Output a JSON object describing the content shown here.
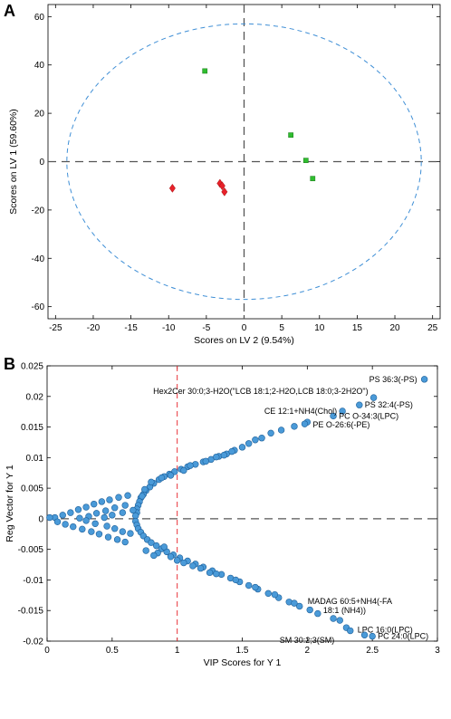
{
  "chart_data": [
    {
      "panel": "A",
      "type": "scatter",
      "xlabel": "Scores on LV 2 (9.54%)",
      "ylabel": "Scores on LV 1 (59.60%)",
      "xlim": [
        -26,
        26
      ],
      "ylim": [
        -65,
        65
      ],
      "xticks": [
        -25,
        -20,
        -15,
        -10,
        -5,
        0,
        5,
        10,
        15,
        20,
        25
      ],
      "yticks": [
        -60,
        -40,
        -20,
        0,
        20,
        40,
        60
      ],
      "ellipse": {
        "cx": 0,
        "cy": 0,
        "rx": 23.5,
        "ry": 57
      },
      "series": [
        {
          "marker": "diamond",
          "color": "#e8212a",
          "points": [
            [
              -9.5,
              -11
            ],
            [
              -3.2,
              -9
            ],
            [
              -2.9,
              -10
            ],
            [
              -2.6,
              -12.5
            ]
          ]
        },
        {
          "marker": "square",
          "color": "#2fbd2f",
          "points": [
            [
              -5.2,
              37.5
            ],
            [
              6.2,
              11
            ],
            [
              8.2,
              0.5
            ],
            [
              9.1,
              -7
            ]
          ]
        }
      ]
    },
    {
      "panel": "B",
      "type": "scatter",
      "xlabel": "VIP Scores for Y 1",
      "ylabel": "Reg Vector for Y 1",
      "xlim": [
        0,
        3
      ],
      "ylim": [
        -0.02,
        0.025
      ],
      "xticks": [
        0,
        0.5,
        1,
        1.5,
        2,
        2.5,
        3
      ],
      "yticks": [
        -0.02,
        -0.015,
        -0.01,
        -0.005,
        0,
        0.005,
        0.01,
        0.015,
        0.02,
        0.025
      ],
      "threshold_vip": 1,
      "point_color": "#4a9ad8",
      "points": [
        [
          2.9,
          0.0228
        ],
        [
          2.51,
          0.0198
        ],
        [
          2.4,
          0.0186
        ],
        [
          2.27,
          0.0176
        ],
        [
          2.2,
          0.0168
        ],
        [
          2.0,
          0.0158
        ],
        [
          1.98,
          0.0155
        ],
        [
          1.9,
          0.0151
        ],
        [
          1.8,
          0.0145
        ],
        [
          1.72,
          0.014
        ],
        [
          1.65,
          0.0132
        ],
        [
          1.6,
          0.0129
        ],
        [
          1.55,
          0.0123
        ],
        [
          1.5,
          0.0117
        ],
        [
          1.44,
          0.0112
        ],
        [
          1.38,
          0.0106
        ],
        [
          1.32,
          0.0102
        ],
        [
          1.26,
          0.0097
        ],
        [
          1.2,
          0.0093
        ],
        [
          1.14,
          0.0089
        ],
        [
          1.08,
          0.0085
        ],
        [
          1.03,
          0.0081
        ],
        [
          0.98,
          0.0077
        ],
        [
          0.94,
          0.0073
        ],
        [
          0.9,
          0.0069
        ],
        [
          0.86,
          0.0064
        ],
        [
          0.82,
          0.0058
        ],
        [
          0.79,
          0.0052
        ],
        [
          0.76,
          0.0046
        ],
        [
          0.74,
          0.004
        ],
        [
          0.72,
          0.0034
        ],
        [
          0.71,
          0.0028
        ],
        [
          0.7,
          0.0022
        ],
        [
          0.69,
          0.0016
        ],
        [
          0.69,
          0.001
        ],
        [
          0.68,
          0.0005
        ],
        [
          1.22,
          0.0094
        ],
        [
          1.3,
          0.0101
        ],
        [
          1.42,
          0.011
        ],
        [
          1.36,
          0.0104
        ],
        [
          1.1,
          0.0087
        ],
        [
          1.05,
          0.0079
        ],
        [
          0.95,
          0.0071
        ],
        [
          0.88,
          0.0067
        ],
        [
          0.8,
          0.006
        ],
        [
          0.75,
          0.0048
        ],
        [
          0.73,
          0.0037
        ],
        [
          0.62,
          0.0038
        ],
        [
          0.55,
          0.0035
        ],
        [
          0.48,
          0.0031
        ],
        [
          0.42,
          0.0028
        ],
        [
          0.36,
          0.0024
        ],
        [
          0.3,
          0.0019
        ],
        [
          0.24,
          0.0015
        ],
        [
          0.18,
          0.001
        ],
        [
          0.12,
          0.0006
        ],
        [
          0.06,
          0.0002
        ],
        [
          0.6,
          0.0022
        ],
        [
          0.52,
          0.0018
        ],
        [
          0.45,
          0.0013
        ],
        [
          0.38,
          0.0009
        ],
        [
          0.32,
          0.0004
        ],
        [
          0.25,
          0.0001
        ],
        [
          0.66,
          0.0014
        ],
        [
          0.58,
          0.001
        ],
        [
          0.5,
          0.0006
        ],
        [
          0.44,
          0.0002
        ],
        [
          0.02,
          0.0002
        ],
        [
          0.08,
          -0.0005
        ],
        [
          0.14,
          -0.0009
        ],
        [
          0.2,
          -0.0013
        ],
        [
          0.27,
          -0.0017
        ],
        [
          0.34,
          -0.0021
        ],
        [
          0.4,
          -0.0025
        ],
        [
          0.47,
          -0.003
        ],
        [
          0.54,
          -0.0034
        ],
        [
          0.6,
          -0.0038
        ],
        [
          0.3,
          -0.0003
        ],
        [
          0.37,
          -0.0008
        ],
        [
          0.46,
          -0.0012
        ],
        [
          0.52,
          -0.0016
        ],
        [
          0.58,
          -0.0021
        ],
        [
          0.64,
          -0.0024
        ],
        [
          0.68,
          -0.0004
        ],
        [
          0.69,
          -0.001
        ],
        [
          0.7,
          -0.0016
        ],
        [
          0.72,
          -0.0022
        ],
        [
          0.74,
          -0.0028
        ],
        [
          0.77,
          -0.0034
        ],
        [
          0.8,
          -0.0039
        ],
        [
          0.84,
          -0.0044
        ],
        [
          0.88,
          -0.0049
        ],
        [
          0.92,
          -0.0054
        ],
        [
          0.97,
          -0.0059
        ],
        [
          1.02,
          -0.0064
        ],
        [
          1.08,
          -0.0069
        ],
        [
          1.14,
          -0.0074
        ],
        [
          1.2,
          -0.0079
        ],
        [
          1.27,
          -0.0085
        ],
        [
          1.34,
          -0.0091
        ],
        [
          1.41,
          -0.0097
        ],
        [
          1.48,
          -0.0103
        ],
        [
          1.55,
          -0.0109
        ],
        [
          1.62,
          -0.0115
        ],
        [
          1.7,
          -0.0122
        ],
        [
          1.78,
          -0.0129
        ],
        [
          1.86,
          -0.0136
        ],
        [
          1.94,
          -0.0143
        ],
        [
          2.02,
          -0.0149
        ],
        [
          2.08,
          -0.0155
        ],
        [
          2.2,
          -0.0163
        ],
        [
          2.25,
          -0.0166
        ],
        [
          2.3,
          -0.0178
        ],
        [
          2.33,
          -0.0183
        ],
        [
          2.44,
          -0.019
        ],
        [
          2.5,
          -0.0192
        ],
        [
          0.85,
          -0.0056
        ],
        [
          0.95,
          -0.0062
        ],
        [
          1.05,
          -0.0072
        ],
        [
          1.18,
          -0.0081
        ],
        [
          1.3,
          -0.009
        ],
        [
          1.45,
          -0.01
        ],
        [
          1.6,
          -0.0112
        ],
        [
          1.75,
          -0.0124
        ],
        [
          1.9,
          -0.0138
        ],
        [
          0.76,
          -0.0052
        ],
        [
          0.82,
          -0.006
        ],
        [
          0.9,
          -0.0046
        ],
        [
          1.0,
          -0.0068
        ],
        [
          1.12,
          -0.0077
        ],
        [
          1.25,
          -0.0088
        ]
      ],
      "annotations": [
        {
          "text": "PS 36:3(-PS)",
          "x": 2.9,
          "y": 0.0228,
          "dx": -8,
          "dy": 3,
          "anchor": "end"
        },
        {
          "text": "Hex2Cer 30:0;3-H2O(\"LCB 18:1;2-H2O,LCB 18:0;3-2H2O\")",
          "x": 2.51,
          "y": 0.0198,
          "dx": -6,
          "dy": -4,
          "anchor": "end"
        },
        {
          "text": "PS 32:4(-PS)",
          "x": 2.4,
          "y": 0.0186,
          "dx": 6,
          "dy": 3,
          "anchor": "start"
        },
        {
          "text": "CE 12:1+NH4(Chol)",
          "x": 2.27,
          "y": 0.0176,
          "dx": -6,
          "dy": 3,
          "anchor": "end"
        },
        {
          "text": "PC O-34:3(LPC)",
          "x": 2.2,
          "y": 0.0168,
          "dx": 6,
          "dy": 3,
          "anchor": "start"
        },
        {
          "text": "PE O-26:6(-PE)",
          "x": 2.0,
          "y": 0.0158,
          "dx": 6,
          "dy": 6,
          "anchor": "start"
        },
        {
          "text": "MADAG 60:5+NH4(-FA",
          "x": 2.3,
          "y": -0.0178,
          "dx": 4,
          "dy": -26,
          "anchor": "middle"
        },
        {
          "text": "18:1 (NH4))",
          "x": 2.3,
          "y": -0.0178,
          "dx": -2,
          "dy": -16,
          "anchor": "middle"
        },
        {
          "text": "LPC 16:0(LPC)",
          "x": 2.33,
          "y": -0.0183,
          "dx": 8,
          "dy": 2,
          "anchor": "start"
        },
        {
          "text": "SM 30:2;3(SM)",
          "x": 2.25,
          "y": -0.0166,
          "dx": -6,
          "dy": 25,
          "anchor": "end"
        },
        {
          "text": "PC 24:0(LPC)",
          "x": 2.5,
          "y": -0.0192,
          "dx": 6,
          "dy": 3,
          "anchor": "start"
        }
      ]
    }
  ],
  "panel_labels": [
    "A",
    "B"
  ]
}
